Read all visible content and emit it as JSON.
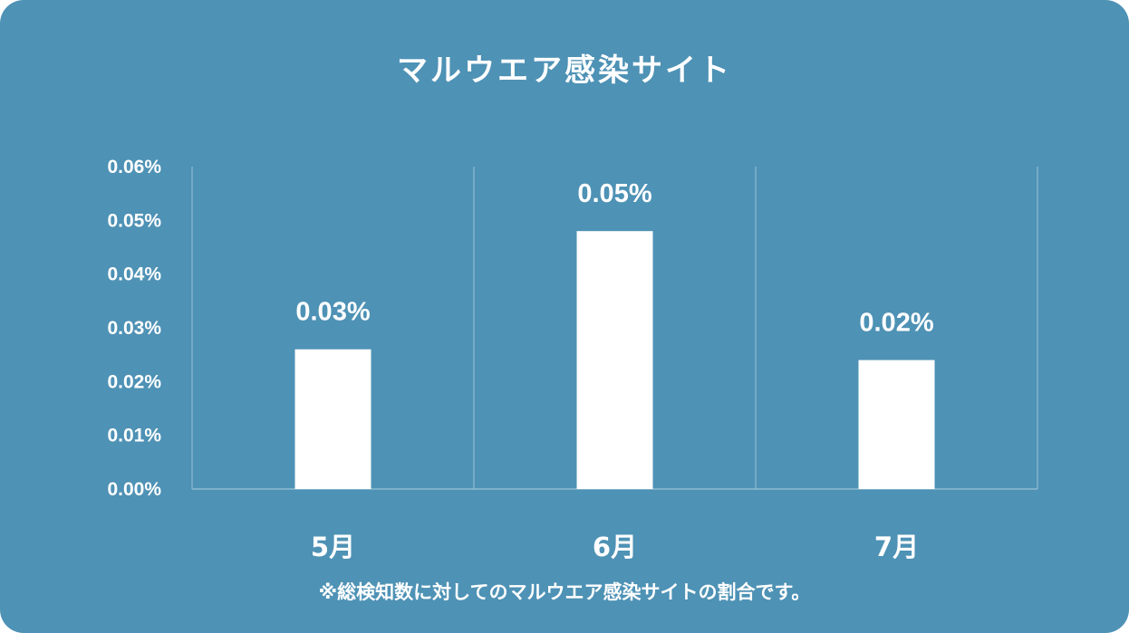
{
  "chart_data": {
    "type": "bar",
    "title": "マルウエア感染サイト",
    "categories": [
      "5月",
      "6月",
      "7月"
    ],
    "values": [
      0.026,
      0.048,
      0.024
    ],
    "data_labels": [
      "0.03%",
      "0.05%",
      "0.02%"
    ],
    "ylim": [
      0,
      0.06
    ],
    "yticks": [
      "0.00%",
      "0.01%",
      "0.02%",
      "0.03%",
      "0.04%",
      "0.05%",
      "0.06%"
    ],
    "note": "※総検知数に対してのマルウエア感染サイトの割合です。",
    "colors": {
      "background": "#4e92b5",
      "bar": "#ffffff",
      "grid": "#8fbbd2"
    }
  }
}
